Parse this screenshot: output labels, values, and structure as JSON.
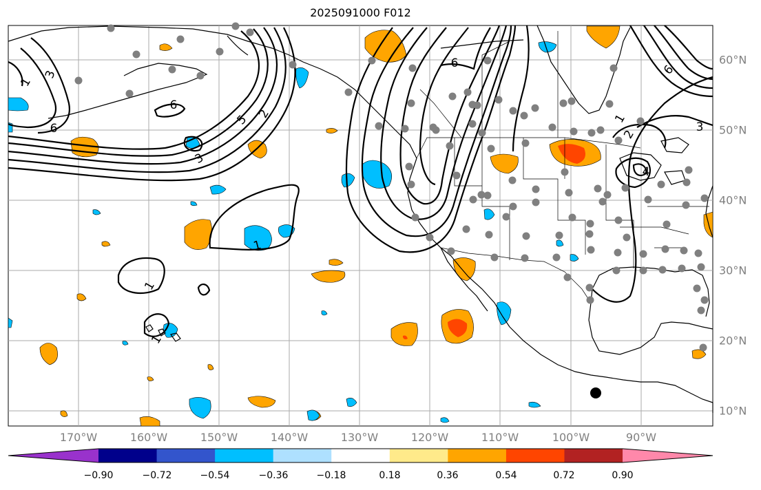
{
  "title": "2025091000 F012",
  "lon_labels": [
    "170°W",
    "160°W",
    "150°W",
    "140°W",
    "130°W",
    "120°W",
    "110°W",
    "100°W",
    "90°W"
  ],
  "lat_labels": [
    "60°N",
    "50°N",
    "40°N",
    "30°N",
    "20°N",
    "10°N"
  ],
  "contour_labels": [
    "1",
    "1",
    "1",
    "1",
    "1",
    "2",
    "2",
    "3",
    "3",
    "3",
    "4",
    "5",
    "6",
    "6",
    "6",
    "6"
  ],
  "colorbar": {
    "ticks": [
      "−0.90",
      "−0.72",
      "−0.54",
      "−0.36",
      "−0.18",
      "0.18",
      "0.36",
      "0.54",
      "0.72",
      "0.90"
    ],
    "colors": [
      "#9932cc",
      "#00008b",
      "#3355cc",
      "#00bfff",
      "#aee0ff",
      "#ffffff",
      "#ffea8a",
      "#ffa500",
      "#ff4500",
      "#b22222",
      "#ff88aa"
    ]
  },
  "colors": {
    "grid": "#aaaaaa",
    "station": "#808080",
    "coast": "#000000",
    "pos_light": "#ffa500",
    "pos_strong": "#ff4500",
    "neg": "#00bfff"
  }
}
